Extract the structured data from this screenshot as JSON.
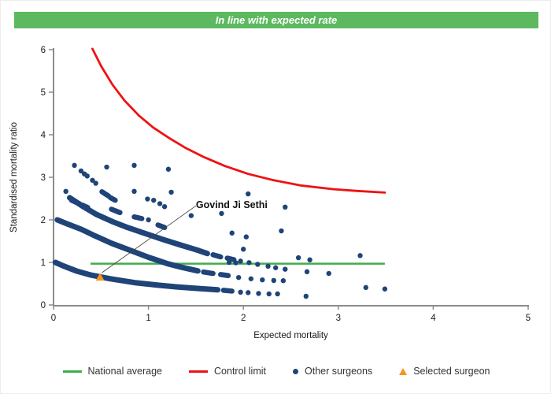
{
  "header": {
    "banner": "In line with expected rate",
    "banner_color": "#5cb95f",
    "banner_text_color": "#ffffff"
  },
  "chart_data": {
    "type": "scatter",
    "title": "In line with expected rate",
    "xlabel": "Expected mortality",
    "ylabel": "Standardised mortality ratio",
    "xlim": [
      0,
      5
    ],
    "ylim": [
      0,
      6
    ],
    "x_ticks": [
      0,
      1,
      2,
      3,
      4,
      5
    ],
    "y_ticks": [
      0,
      1,
      2,
      3,
      4,
      5,
      6
    ],
    "grid": false,
    "axis_color": "#8c8c8c",
    "tick_label_color": "#1a1a1a",
    "national_average": {
      "label": "National average",
      "color": "#3fae49",
      "y": 0.97,
      "x_start": 0.39,
      "x_end": 3.49
    },
    "control_limit": {
      "label": "Control limit",
      "color": "#ee1212",
      "points": [
        [
          0.41,
          6.02
        ],
        [
          0.5,
          5.62
        ],
        [
          0.62,
          5.18
        ],
        [
          0.75,
          4.8
        ],
        [
          0.9,
          4.45
        ],
        [
          1.05,
          4.17
        ],
        [
          1.22,
          3.92
        ],
        [
          1.4,
          3.68
        ],
        [
          1.58,
          3.48
        ],
        [
          1.8,
          3.27
        ],
        [
          2.05,
          3.08
        ],
        [
          2.3,
          2.94
        ],
        [
          2.6,
          2.81
        ],
        [
          2.95,
          2.72
        ],
        [
          3.2,
          2.68
        ],
        [
          3.49,
          2.64
        ]
      ]
    },
    "other_surgeons": {
      "label": "Other surgeons",
      "color": "#1e4478",
      "bands": [
        {
          "anchors": [
            [
              0.17,
              2.52
            ],
            [
              0.3,
              2.33
            ],
            [
              0.45,
              2.13
            ],
            [
              0.62,
              1.96
            ],
            [
              0.78,
              1.82
            ],
            [
              0.95,
              1.69
            ],
            [
              1.15,
              1.54
            ],
            [
              1.35,
              1.4
            ],
            [
              1.5,
              1.3
            ],
            [
              1.62,
              1.21
            ]
          ]
        },
        {
          "anchors": [
            [
              0.04,
              2.0
            ],
            [
              0.15,
              1.9
            ],
            [
              0.29,
              1.78
            ],
            [
              0.42,
              1.64
            ],
            [
              0.61,
              1.45
            ],
            [
              0.8,
              1.29
            ],
            [
              1.0,
              1.12
            ],
            [
              1.2,
              0.97
            ],
            [
              1.35,
              0.885
            ],
            [
              1.52,
              0.8
            ]
          ]
        },
        {
          "anchors": [
            [
              0.02,
              1.0
            ],
            [
              0.1,
              0.92
            ],
            [
              0.25,
              0.79
            ],
            [
              0.4,
              0.7
            ],
            [
              0.6,
              0.615
            ],
            [
              0.87,
              0.52
            ],
            [
              1.1,
              0.465
            ],
            [
              1.3,
              0.425
            ],
            [
              1.5,
              0.39
            ],
            [
              1.73,
              0.355
            ]
          ]
        }
      ],
      "dashes": [
        [
          [
            0.19,
            2.46
          ],
          [
            0.27,
            2.38
          ]
        ],
        [
          [
            0.3,
            2.35
          ],
          [
            0.36,
            2.29
          ]
        ],
        [
          [
            0.51,
            2.66
          ],
          [
            0.58,
            2.56
          ]
        ],
        [
          [
            0.6,
            2.52
          ],
          [
            0.65,
            2.46
          ]
        ],
        [
          [
            0.61,
            2.25
          ],
          [
            0.7,
            2.17
          ]
        ],
        [
          [
            0.85,
            2.07
          ],
          [
            0.93,
            2.03
          ]
        ],
        [
          [
            1.1,
            1.88
          ],
          [
            1.17,
            1.82
          ]
        ],
        [
          [
            1.68,
            1.18
          ],
          [
            1.76,
            1.13
          ]
        ],
        [
          [
            1.83,
            1.1
          ],
          [
            1.9,
            1.065
          ]
        ],
        [
          [
            1.58,
            0.775
          ],
          [
            1.68,
            0.74
          ]
        ],
        [
          [
            1.76,
            0.715
          ],
          [
            1.84,
            0.69
          ]
        ],
        [
          [
            1.79,
            0.345
          ],
          [
            1.88,
            0.325
          ]
        ]
      ],
      "dots": [
        [
          0.22,
          3.28
        ],
        [
          0.29,
          3.15
        ],
        [
          0.325,
          3.08
        ],
        [
          0.355,
          3.03
        ],
        [
          0.41,
          2.93
        ],
        [
          0.445,
          2.86
        ],
        [
          0.56,
          3.24
        ],
        [
          0.85,
          3.28
        ],
        [
          1.21,
          3.19
        ],
        [
          0.13,
          2.67
        ],
        [
          0.85,
          2.67
        ],
        [
          1.24,
          2.65
        ],
        [
          0.99,
          2.49
        ],
        [
          1.055,
          2.46
        ],
        [
          1.12,
          2.38
        ],
        [
          1.17,
          2.31
        ],
        [
          1.0,
          2.0
        ],
        [
          1.45,
          2.1
        ],
        [
          1.77,
          2.15
        ],
        [
          2.05,
          2.61
        ],
        [
          2.44,
          2.3
        ],
        [
          1.88,
          1.69
        ],
        [
          2.03,
          1.6
        ],
        [
          2.4,
          1.74
        ],
        [
          2.0,
          1.31
        ],
        [
          2.58,
          1.11
        ],
        [
          2.7,
          1.06
        ],
        [
          3.23,
          1.16
        ],
        [
          1.85,
          1.0
        ],
        [
          1.92,
          0.99
        ],
        [
          1.97,
          1.03
        ],
        [
          2.06,
          0.995
        ],
        [
          2.15,
          0.955
        ],
        [
          2.26,
          0.91
        ],
        [
          2.34,
          0.875
        ],
        [
          2.44,
          0.84
        ],
        [
          1.95,
          0.645
        ],
        [
          2.08,
          0.615
        ],
        [
          2.2,
          0.59
        ],
        [
          2.32,
          0.575
        ],
        [
          2.42,
          0.57
        ],
        [
          2.67,
          0.78
        ],
        [
          2.9,
          0.74
        ],
        [
          1.97,
          0.3
        ],
        [
          2.05,
          0.29
        ],
        [
          2.16,
          0.27
        ],
        [
          2.27,
          0.26
        ],
        [
          2.36,
          0.26
        ],
        [
          2.66,
          0.205
        ],
        [
          3.29,
          0.41
        ],
        [
          3.49,
          0.375
        ]
      ]
    },
    "selected_surgeon": {
      "label": "Selected surgeon",
      "name": "Govind Ji Sethi",
      "x": 0.49,
      "y": 0.655,
      "color": "#f7941e",
      "annotation": {
        "line_from": [
          0.51,
          0.76
        ],
        "line_to": [
          1.5,
          2.33
        ],
        "text_x": 1.5,
        "text_y": 2.28
      }
    }
  },
  "legend": {
    "items": [
      {
        "label": "National average",
        "swatch": "line",
        "color": "#3fae49"
      },
      {
        "label": "Control limit",
        "swatch": "line",
        "color": "#ee1212"
      },
      {
        "label": "Other surgeons",
        "swatch": "dot",
        "color": "#1e4478"
      },
      {
        "label": "Selected surgeon",
        "swatch": "triangle",
        "color": "#f7941e"
      }
    ]
  }
}
